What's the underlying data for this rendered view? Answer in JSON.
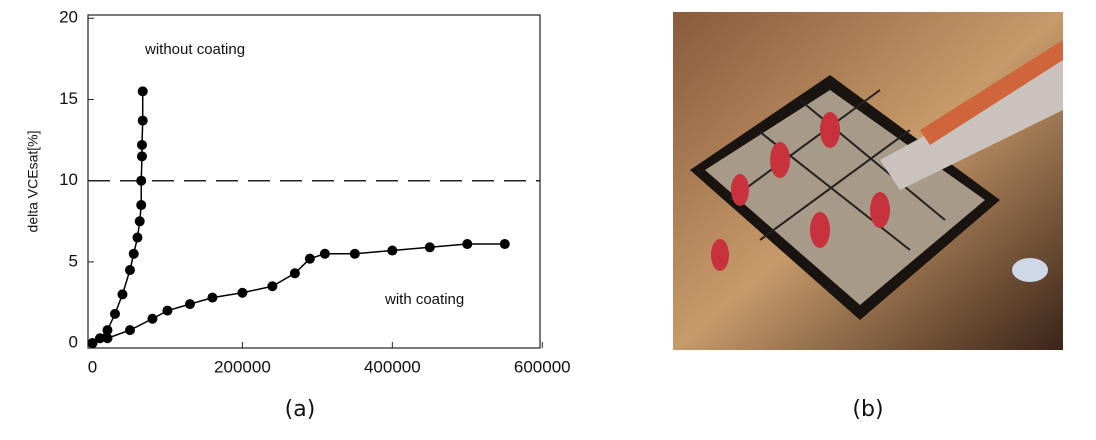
{
  "chart_data": {
    "type": "line",
    "ylabel": "delta VCEsat[%]",
    "xlim": [
      -6000,
      597000
    ],
    "ylim": [
      -0.3,
      20.2
    ],
    "xticks": [
      0,
      200000,
      400000,
      600000
    ],
    "yticks": [
      0,
      5,
      10,
      15,
      20
    ],
    "hline": 10,
    "series": [
      {
        "name": "without coating",
        "color": "#000000",
        "x": [
          0,
          10000,
          20000,
          30000,
          40000,
          50000,
          55000,
          60000,
          63000,
          65000,
          65000,
          66000,
          66000,
          67000,
          67000
        ],
        "values": [
          0,
          0.3,
          0.8,
          1.8,
          3,
          4.5,
          5.5,
          6.5,
          7.5,
          8.5,
          10,
          11.5,
          12.2,
          13.7,
          15.5
        ]
      },
      {
        "name": "with coating",
        "color": "#000000",
        "x": [
          0,
          20000,
          50000,
          80000,
          100000,
          130000,
          160000,
          200000,
          240000,
          270000,
          290000,
          310000,
          350000,
          400000,
          450000,
          500000,
          550000
        ],
        "values": [
          0,
          0.3,
          0.8,
          1.5,
          2,
          2.4,
          2.8,
          3.1,
          3.5,
          4.3,
          5.2,
          5.5,
          5.5,
          5.7,
          5.9,
          6.1,
          6.1
        ]
      }
    ]
  },
  "captions": [
    "(a)",
    "(b)"
  ]
}
